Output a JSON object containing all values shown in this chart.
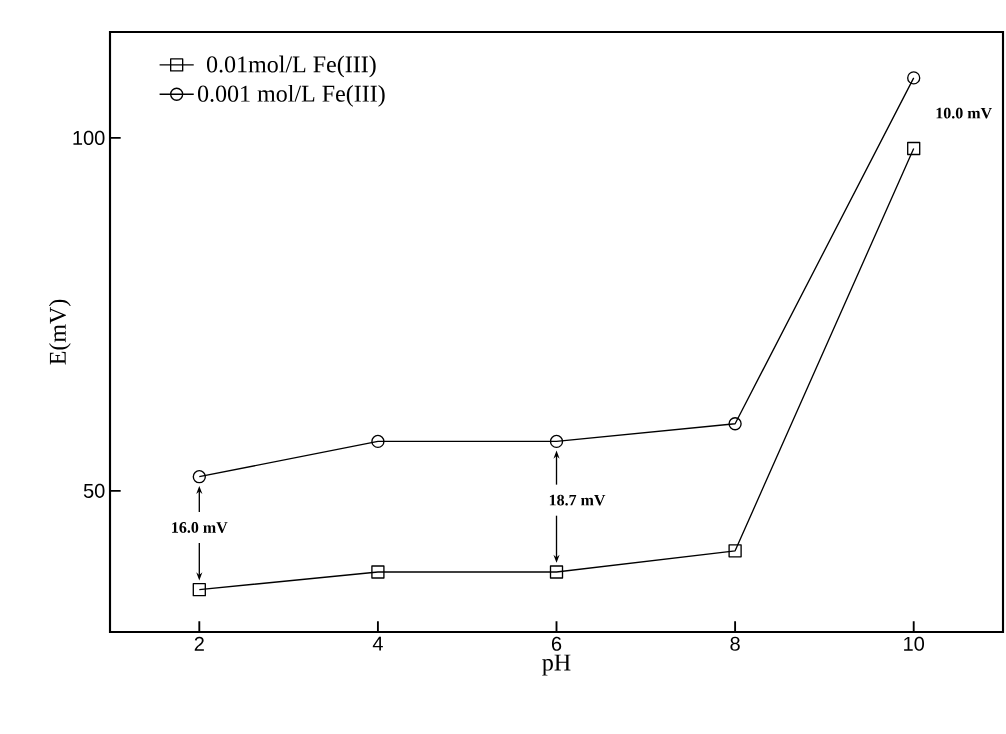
{
  "chart_data": {
    "type": "line",
    "xlabel": "pH",
    "ylabel": "E(mV)",
    "x": [
      2,
      4,
      6,
      8,
      10
    ],
    "series": [
      {
        "name": "0.01mol/L Fe(III)",
        "color": "#000000",
        "marker": "square",
        "values": [
          36.0,
          38.5,
          38.5,
          41.5,
          98.5
        ]
      },
      {
        "name": "0.001 mol/L Fe(III)",
        "color": "#000000",
        "marker": "circle",
        "values": [
          52.0,
          57.0,
          57.0,
          59.5,
          108.5
        ]
      }
    ],
    "xlim": [
      1,
      11
    ],
    "xticks": [
      2,
      4,
      6,
      8,
      10
    ],
    "ylim": [
      30,
      115
    ],
    "yticks": [
      50,
      100
    ],
    "legend": "top left",
    "grid": false,
    "line_style": "solid",
    "annotations": [
      "16.0 mV",
      "18.7 mV",
      "10.0 mV"
    ]
  }
}
